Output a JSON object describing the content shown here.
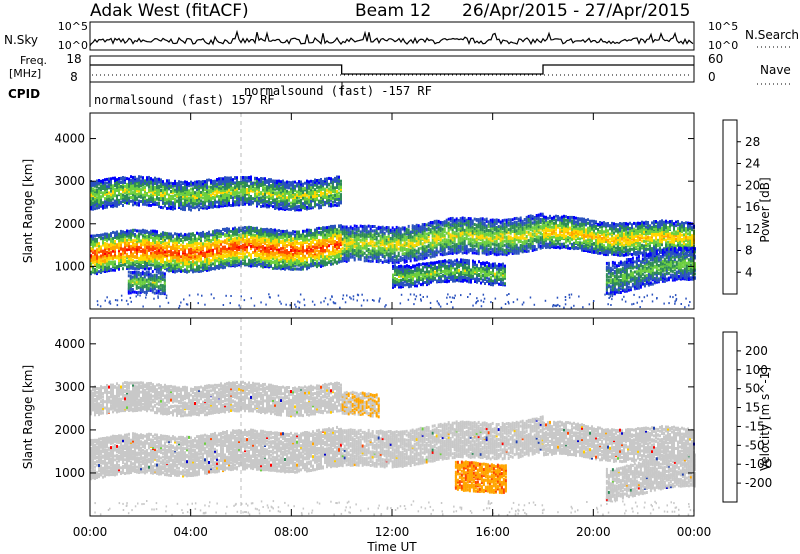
{
  "header": {
    "title": "Adak West (fitACF)",
    "beam": "Beam 12",
    "date_range": "26/Apr/2015 - 27/Apr/2015"
  },
  "strip1": {
    "left_label": "N.Sky",
    "right_label": "N.Search",
    "left_ticks": [
      "10^5",
      "10^0"
    ],
    "right_ticks": [
      "10^5",
      "10^0"
    ]
  },
  "strip2": {
    "left_label_1": "Freq.",
    "left_label_2": "[MHz]",
    "right_label": "Nave",
    "left_ticks": [
      "18",
      "8"
    ],
    "right_ticks": [
      "60",
      "0"
    ]
  },
  "cpid": {
    "label": "CPID",
    "mode_1": "normalsound (fast) 157 RF",
    "mode_2": "normalsound (fast) -157 RF"
  },
  "colors": {
    "power": [
      "#0000ff",
      "#2a52be",
      "#2e8b57",
      "#6ccf3f",
      "#ffd700",
      "#ffa500",
      "#ff4500",
      "#ff0000"
    ],
    "velocity": [
      "#ff0000",
      "#ff4500",
      "#ffa500",
      "#ffcc00",
      "#c8c8c8",
      "#c8c8c8",
      "#6ccf3f",
      "#2e8b57",
      "#1e3fae",
      "#0000cc"
    ]
  },
  "chart_data": [
    {
      "type": "heatmap",
      "name": "power",
      "ylabel": "Slant Range [km]",
      "yticks": [
        1000,
        2000,
        3000,
        4000
      ],
      "ylim": [
        0,
        4600
      ],
      "xlim_hours": [
        0,
        24
      ],
      "colorbar_label": "Power [dB]",
      "colorbar_ticks": [
        "4",
        "8",
        "12",
        "16",
        "20",
        "24",
        "28"
      ],
      "colorbar_range": [
        0,
        32
      ],
      "bands": [
        {
          "from_h": 0.0,
          "to_h": 10.0,
          "center_km": 1350,
          "center_end_km": 1500,
          "width_km": 450,
          "strength": 0.9
        },
        {
          "from_h": 0.0,
          "to_h": 10.0,
          "center_km": 2750,
          "center_end_km": 2750,
          "width_km": 300,
          "strength": 0.5
        },
        {
          "from_h": 10.0,
          "to_h": 18.0,
          "center_km": 1500,
          "center_end_km": 1850,
          "width_km": 400,
          "strength": 0.55
        },
        {
          "from_h": 12.0,
          "to_h": 16.5,
          "center_km": 850,
          "center_end_km": 900,
          "width_km": 250,
          "strength": 0.45
        },
        {
          "from_h": 18.0,
          "to_h": 24.0,
          "center_km": 1800,
          "center_end_km": 1650,
          "width_km": 350,
          "strength": 0.65
        },
        {
          "from_h": 20.5,
          "to_h": 24.0,
          "center_km": 800,
          "center_end_km": 1100,
          "width_km": 350,
          "strength": 0.4
        },
        {
          "from_h": 1.5,
          "to_h": 3.0,
          "center_km": 600,
          "center_end_km": 650,
          "width_km": 250,
          "strength": 0.45
        }
      ]
    },
    {
      "type": "heatmap",
      "name": "velocity",
      "ylabel": "Slant Range [km]",
      "xlabel": "Time UT",
      "yticks": [
        1000,
        2000,
        3000,
        4000
      ],
      "ylim": [
        0,
        4600
      ],
      "xticks": [
        "00:00",
        "04:00",
        "08:00",
        "12:00",
        "16:00",
        "20:00",
        "00:00"
      ],
      "xlim_hours": [
        0,
        24
      ],
      "colorbar_label": "Velocity [m s^-1]",
      "colorbar_ticks": [
        "-200",
        "-100",
        "-50",
        "-15",
        "15",
        "50",
        "100",
        "200"
      ],
      "bands": [
        {
          "from_h": 0.0,
          "to_h": 10.0,
          "center_km": 1400,
          "center_end_km": 1600,
          "width_km": 450,
          "v": 0
        },
        {
          "from_h": 0.0,
          "to_h": 10.0,
          "center_km": 2750,
          "center_end_km": 2750,
          "width_km": 300,
          "v": 0
        },
        {
          "from_h": 10.0,
          "to_h": 18.0,
          "center_km": 1550,
          "center_end_km": 1900,
          "width_km": 400,
          "v": 0
        },
        {
          "from_h": 14.5,
          "to_h": 16.5,
          "center_km": 900,
          "center_end_km": 950,
          "width_km": 300,
          "v": -60
        },
        {
          "from_h": 18.0,
          "to_h": 24.0,
          "center_km": 1800,
          "center_end_km": 1650,
          "width_km": 350,
          "v": 0
        },
        {
          "from_h": 20.5,
          "to_h": 24.0,
          "center_km": 800,
          "center_end_km": 1100,
          "width_km": 350,
          "v": 0
        },
        {
          "from_h": 10.0,
          "to_h": 11.5,
          "center_km": 2600,
          "center_end_km": 2600,
          "width_km": 250,
          "v": -40
        }
      ]
    }
  ]
}
